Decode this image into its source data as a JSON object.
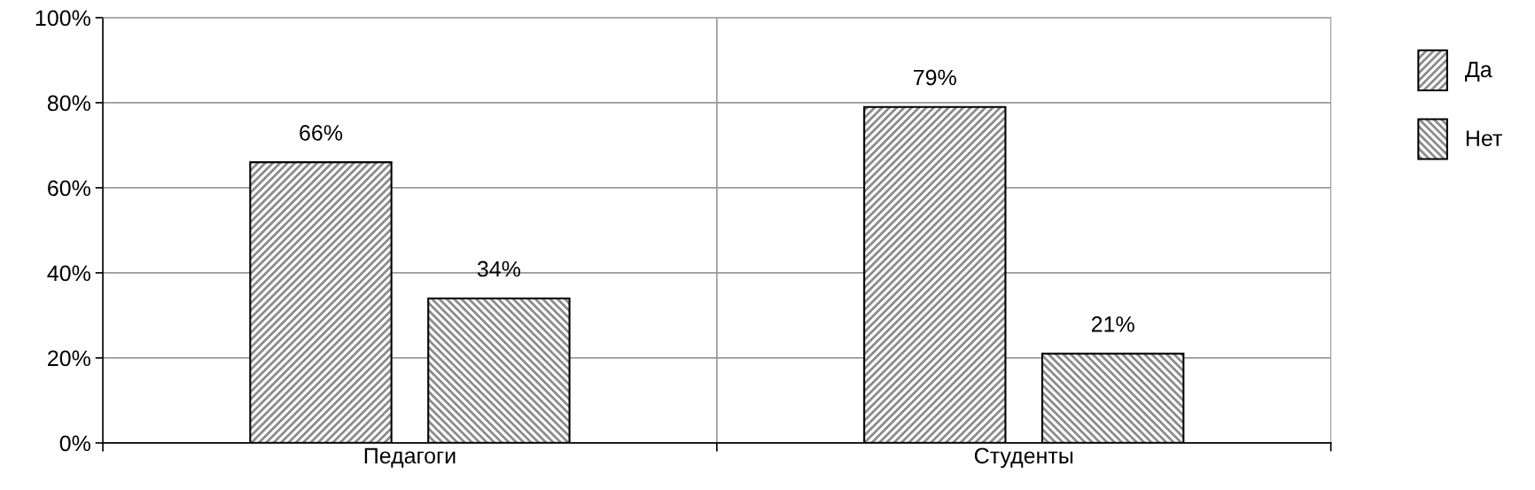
{
  "chart_data": {
    "type": "bar",
    "categories": [
      "Педагоги",
      "Студенты"
    ],
    "series": [
      {
        "name": "Да",
        "color": "#000000",
        "values": [
          66,
          79
        ],
        "value_labels": [
          "66%",
          "79%"
        ]
      },
      {
        "name": "Нет",
        "color": "#000000",
        "values": [
          34,
          21
        ],
        "value_labels": [
          "34%",
          "21%"
        ]
      }
    ],
    "ylim": [
      0,
      100
    ],
    "yticks": [
      {
        "value": 0,
        "label": "0%"
      },
      {
        "value": 20,
        "label": "20%"
      },
      {
        "value": 40,
        "label": "40%"
      },
      {
        "value": 60,
        "label": "60%"
      },
      {
        "value": 80,
        "label": "80%"
      },
      {
        "value": 100,
        "label": "100%"
      }
    ],
    "grid": true,
    "legend": "top right"
  }
}
